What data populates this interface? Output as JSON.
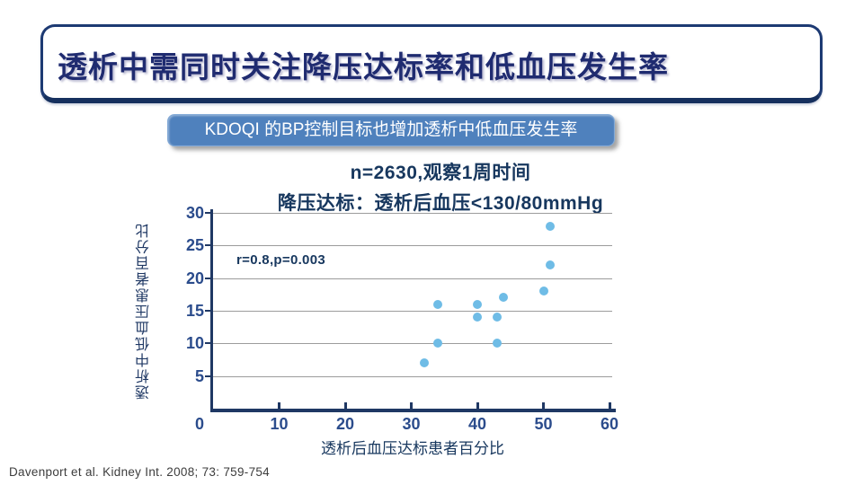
{
  "title": {
    "text": "透析中需同时关注降压达标率和低血压发生率"
  },
  "badge": {
    "text": "KDOQI 的BP控制目标也增加透析中低血压发生率"
  },
  "chart_data": {
    "type": "scatter",
    "title_line1": "n=2630,观察1周时间",
    "title_line2": "降压达标：透析后血压<130/80mmHg",
    "annotation": "r=0.8,p=0.003",
    "xlabel": "透析后血压达标患者百分比",
    "ylabel": "透析中低血压患者百分比",
    "xlim": [
      0,
      60
    ],
    "ylim": [
      0,
      30
    ],
    "x_ticks": [
      0,
      10,
      20,
      30,
      40,
      50,
      60
    ],
    "y_ticks": [
      5,
      10,
      15,
      20,
      25,
      30
    ],
    "grid": "horizontal-only",
    "legend": "none",
    "points": [
      {
        "x": 32,
        "y": 7
      },
      {
        "x": 34,
        "y": 10
      },
      {
        "x": 34,
        "y": 16
      },
      {
        "x": 40,
        "y": 14
      },
      {
        "x": 40,
        "y": 16
      },
      {
        "x": 43,
        "y": 10
      },
      {
        "x": 43,
        "y": 14
      },
      {
        "x": 44,
        "y": 17
      },
      {
        "x": 50,
        "y": 18
      },
      {
        "x": 51,
        "y": 22
      },
      {
        "x": 51,
        "y": 28
      }
    ]
  },
  "footer": {
    "citation": "Davenport et al. Kidney Int. 2008; 73: 759-754"
  },
  "colors": {
    "title_text": "#1f2b70",
    "box_border": "#1d3a73",
    "badge_fill": "#4f81bd",
    "axis": "#1f3864",
    "tick_label": "#2b4c8c",
    "gridline": "#9c9c9c",
    "point": "#6fbce6",
    "chart_text": "#17375e",
    "footer_text": "#3c3c3c"
  }
}
